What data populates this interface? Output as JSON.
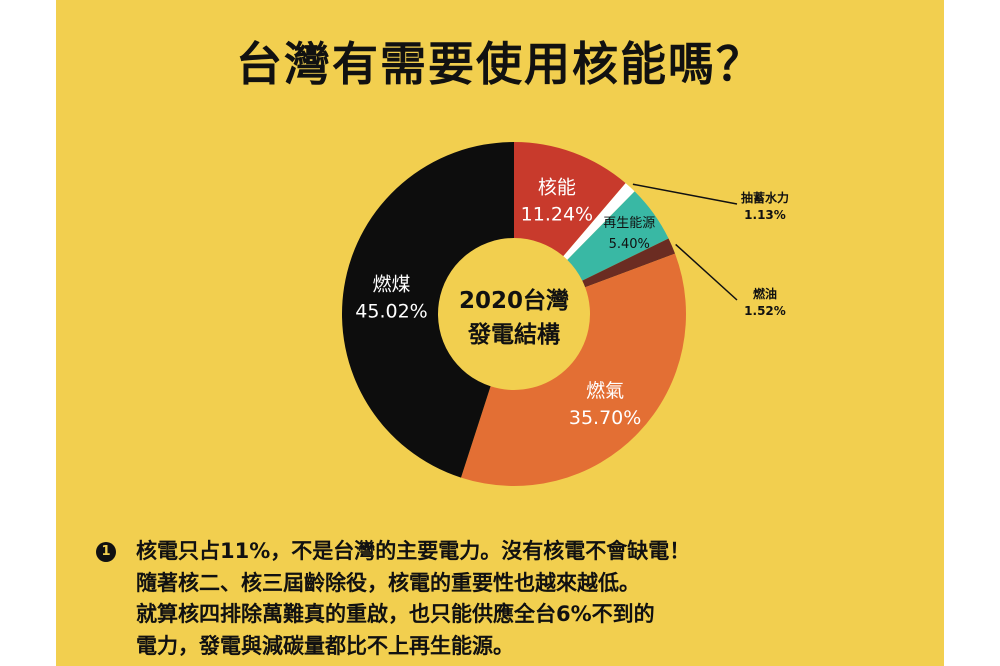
{
  "title": "台灣有需要使用核能嗎？",
  "chart_data": {
    "type": "pie",
    "donut": true,
    "center_label": [
      "2020台灣",
      "發電結構"
    ],
    "unit": "%",
    "slices": [
      {
        "label": "核能",
        "value": 11.24,
        "display": "11.24%",
        "color": "#c83a2c"
      },
      {
        "label": "抽蓄水力",
        "value": 1.13,
        "display": "1.13%",
        "color": "#ffffff"
      },
      {
        "label": "再生能源",
        "value": 5.4,
        "display": "5.40%",
        "color": "#39b8a4"
      },
      {
        "label": "燃油",
        "value": 1.52,
        "display": "1.52%",
        "color": "#6b2c22"
      },
      {
        "label": "燃氣",
        "value": 35.7,
        "display": "35.70%",
        "color": "#e36f34"
      },
      {
        "label": "燃煤",
        "value": 45.02,
        "display": "45.02%",
        "color": "#0d0d0d"
      }
    ]
  },
  "notes": {
    "number": "1",
    "lines": [
      "核電只占11%，不是台灣的主要電力。沒有核電不會缺電！",
      "隨著核二、核三屆齡除役，核電的重要性也越來越低。",
      "就算核四排除萬難真的重啟，也只能供應全台6%不到的",
      "電力，發電與減碳量都比不上再生能源。"
    ]
  }
}
